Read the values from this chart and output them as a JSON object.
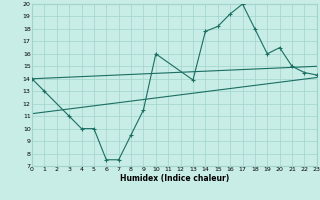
{
  "bg_color": "#c8ece6",
  "grid_color": "#a0d4cc",
  "line_color": "#1a6e62",
  "xlabel": "Humidex (Indice chaleur)",
  "ylim": [
    7,
    20
  ],
  "xlim": [
    0,
    23
  ],
  "yticks": [
    7,
    8,
    9,
    10,
    11,
    12,
    13,
    14,
    15,
    16,
    17,
    18,
    19,
    20
  ],
  "xticks": [
    0,
    1,
    2,
    3,
    4,
    5,
    6,
    7,
    8,
    9,
    10,
    11,
    12,
    13,
    14,
    15,
    16,
    17,
    18,
    19,
    20,
    21,
    22,
    23
  ],
  "curve_x": [
    0,
    1,
    3,
    4,
    5,
    6,
    7,
    8,
    9,
    10,
    13,
    14,
    15,
    16,
    17,
    18,
    19,
    20,
    21,
    22,
    23
  ],
  "curve_y": [
    14,
    13,
    11,
    10,
    10,
    7.5,
    7.5,
    9.5,
    11.5,
    16,
    13.9,
    17.8,
    18.2,
    19.2,
    20.0,
    18.0,
    16.0,
    16.5,
    15.0,
    14.5,
    14.3
  ],
  "line2_x": [
    0,
    23
  ],
  "line2_y": [
    14.0,
    15.0
  ],
  "line3_x": [
    0,
    23
  ],
  "line3_y": [
    11.2,
    14.1
  ]
}
